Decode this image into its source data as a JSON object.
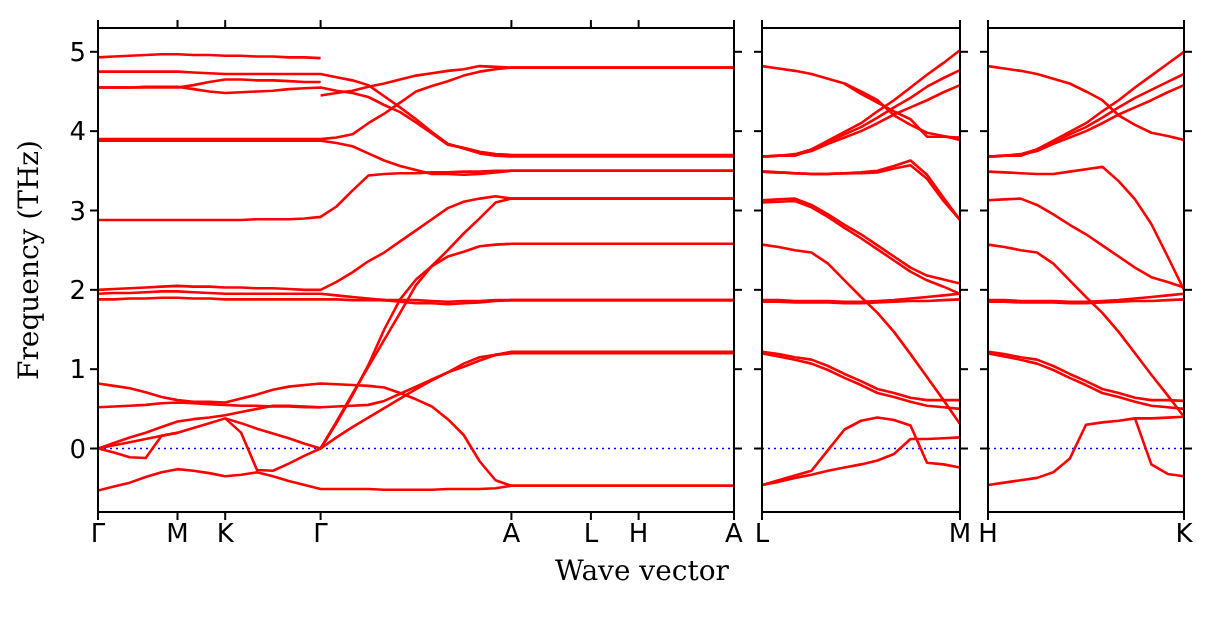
{
  "chart_data": [
    {
      "type": "line",
      "ylabel": "Frequency (THz)",
      "xlabel": "Wave vector",
      "categories": [
        "Γ",
        null,
        null,
        null,
        null,
        "M",
        null,
        null,
        "K",
        null,
        null,
        null,
        null,
        null,
        "Γ",
        null,
        null,
        null,
        null,
        null,
        null,
        null,
        null,
        null,
        null,
        null,
        "A",
        null,
        null,
        null,
        null,
        "L",
        null,
        null,
        "H",
        null,
        null,
        null,
        null,
        null,
        "A"
      ],
      "ylim": [
        -0.8,
        5.3
      ],
      "yticks": [
        0,
        1,
        2,
        3,
        4,
        5
      ],
      "ref_lines": [
        {
          "axis": "y",
          "value": 0,
          "color": "#0000ff",
          "line_style": "dotted"
        }
      ],
      "series": [
        {
          "color": "#ff0000",
          "values": [
            4.93,
            4.94,
            4.95,
            4.96,
            4.97,
            4.97,
            4.96,
            4.96,
            4.95,
            4.95,
            4.94,
            4.94,
            4.93,
            4.93,
            4.92,
            null,
            null,
            null,
            null,
            null,
            null,
            null,
            null,
            null,
            null,
            null,
            null,
            null,
            null,
            null,
            null,
            null,
            null,
            null,
            null,
            null,
            null,
            null,
            null,
            null,
            null
          ]
        },
        {
          "color": "#ff0000",
          "values": [
            4.75,
            4.75,
            4.75,
            4.75,
            4.75,
            4.75,
            4.74,
            4.73,
            4.72,
            4.72,
            4.72,
            4.72,
            4.72,
            4.72,
            4.72,
            4.68,
            4.64,
            4.58,
            4.44,
            4.3,
            4.15,
            3.99,
            3.84,
            3.78,
            3.72,
            3.69,
            3.68,
            3.68,
            3.68,
            3.68,
            3.68,
            3.68,
            3.68,
            3.68,
            3.68,
            3.68,
            3.68,
            3.68,
            3.68,
            3.68,
            3.68
          ]
        },
        {
          "color": "#ff0000",
          "values": [
            4.55,
            4.55,
            4.55,
            4.56,
            4.56,
            4.56,
            4.53,
            4.5,
            4.48,
            4.49,
            4.5,
            4.51,
            4.53,
            4.54,
            4.55,
            4.51,
            4.48,
            4.43,
            4.33,
            4.24,
            4.11,
            3.97,
            3.83,
            3.79,
            3.74,
            3.71,
            3.7,
            3.7,
            3.7,
            3.7,
            3.7,
            3.7,
            3.7,
            3.7,
            3.7,
            3.7,
            3.7,
            3.7,
            3.7,
            3.7,
            3.7
          ]
        },
        {
          "color": "#ff0000",
          "values": [
            4.55,
            4.55,
            4.55,
            4.55,
            4.55,
            4.55,
            4.58,
            4.62,
            4.65,
            4.65,
            4.64,
            4.64,
            4.63,
            4.62,
            4.62,
            null,
            null,
            null,
            null,
            null,
            null,
            null,
            null,
            null,
            null,
            null,
            null,
            null,
            null,
            null,
            null,
            null,
            null,
            null,
            null,
            null,
            null,
            null,
            null,
            null,
            null
          ]
        },
        {
          "color": "#ff0000",
          "values": [
            null,
            null,
            null,
            null,
            null,
            null,
            null,
            null,
            null,
            null,
            null,
            null,
            null,
            null,
            4.45,
            4.48,
            4.51,
            4.56,
            4.6,
            4.65,
            4.7,
            4.73,
            4.76,
            4.78,
            4.82,
            4.81,
            4.8,
            4.8,
            4.8,
            4.8,
            4.8,
            4.8,
            4.8,
            4.8,
            4.8,
            4.8,
            4.8,
            4.8,
            4.8,
            4.8,
            4.8
          ]
        },
        {
          "color": "#ff0000",
          "values": [
            3.9,
            3.9,
            3.9,
            3.9,
            3.9,
            3.9,
            3.9,
            3.9,
            3.9,
            3.9,
            3.9,
            3.9,
            3.9,
            3.9,
            3.9,
            3.92,
            3.96,
            4.1,
            4.22,
            4.36,
            4.5,
            4.57,
            4.63,
            4.7,
            4.75,
            4.78,
            4.8,
            4.8,
            4.8,
            4.8,
            4.8,
            4.8,
            4.8,
            4.8,
            4.8,
            4.8,
            4.8,
            4.8,
            4.8,
            4.8,
            4.8
          ]
        },
        {
          "color": "#ff0000",
          "values": [
            3.88,
            3.88,
            3.88,
            3.88,
            3.88,
            3.88,
            3.88,
            3.88,
            3.88,
            3.88,
            3.88,
            3.88,
            3.88,
            3.88,
            3.88,
            3.85,
            3.81,
            3.72,
            3.63,
            3.56,
            3.51,
            3.46,
            3.46,
            3.45,
            3.46,
            3.48,
            3.5,
            3.5,
            3.5,
            3.5,
            3.5,
            3.5,
            3.5,
            3.5,
            3.5,
            3.5,
            3.5,
            3.5,
            3.5,
            3.5,
            3.5
          ]
        },
        {
          "color": "#ff0000",
          "values": [
            2.88,
            2.88,
            2.88,
            2.88,
            2.88,
            2.88,
            2.88,
            2.88,
            2.88,
            2.88,
            2.89,
            2.89,
            2.89,
            2.9,
            2.92,
            3.05,
            3.25,
            3.44,
            3.46,
            3.47,
            3.47,
            3.48,
            3.48,
            3.49,
            3.49,
            3.5,
            3.5,
            3.5,
            3.5,
            3.5,
            3.5,
            3.5,
            3.5,
            3.5,
            3.5,
            3.5,
            3.5,
            3.5,
            3.5,
            3.5,
            3.5
          ]
        },
        {
          "color": "#ff0000",
          "values": [
            2.0,
            2.01,
            2.02,
            2.03,
            2.04,
            2.05,
            2.04,
            2.04,
            2.03,
            2.03,
            2.02,
            2.02,
            2.01,
            2.0,
            2.0,
            2.1,
            2.22,
            2.36,
            2.47,
            2.61,
            2.75,
            2.89,
            3.03,
            3.11,
            3.15,
            3.18,
            3.15,
            3.15,
            3.15,
            3.15,
            3.15,
            3.15,
            3.15,
            3.15,
            3.15,
            3.15,
            3.15,
            3.15,
            3.15,
            3.15,
            3.15
          ]
        },
        {
          "color": "#ff0000",
          "values": [
            1.95,
            1.96,
            1.96,
            1.97,
            1.98,
            1.98,
            1.97,
            1.96,
            1.95,
            1.95,
            1.95,
            1.95,
            1.95,
            1.95,
            1.95,
            1.93,
            1.91,
            1.89,
            1.87,
            1.85,
            1.83,
            1.83,
            1.82,
            1.83,
            1.84,
            1.86,
            1.87,
            1.87,
            1.87,
            1.87,
            1.87,
            1.87,
            1.87,
            1.87,
            1.87,
            1.87,
            1.87,
            1.87,
            1.87,
            1.87,
            1.87
          ]
        },
        {
          "color": "#ff0000",
          "values": [
            1.88,
            1.88,
            1.89,
            1.89,
            1.9,
            1.9,
            1.89,
            1.89,
            1.88,
            1.88,
            1.88,
            1.88,
            1.88,
            1.88,
            1.88,
            1.88,
            1.87,
            1.87,
            1.87,
            1.87,
            1.87,
            1.86,
            1.85,
            1.86,
            1.86,
            1.87,
            1.87,
            1.87,
            1.87,
            1.87,
            1.87,
            1.87,
            1.87,
            1.87,
            1.87,
            1.87,
            1.87,
            1.87,
            1.87,
            1.87,
            1.87
          ]
        },
        {
          "color": "#ff0000",
          "values": [
            null,
            null,
            null,
            null,
            null,
            null,
            null,
            null,
            null,
            null,
            null,
            null,
            null,
            null,
            0,
            0.32,
            0.67,
            1.05,
            1.5,
            1.88,
            2.13,
            2.3,
            2.42,
            2.48,
            2.55,
            2.57,
            2.58,
            2.58,
            2.58,
            2.58,
            2.58,
            2.58,
            2.58,
            2.58,
            2.58,
            2.58,
            2.58,
            2.58,
            2.58,
            2.58,
            2.58
          ]
        },
        {
          "color": "#ff0000",
          "values": [
            null,
            null,
            null,
            null,
            null,
            null,
            null,
            null,
            null,
            null,
            null,
            null,
            null,
            null,
            0,
            0.34,
            0.69,
            1.03,
            1.37,
            1.71,
            2.06,
            2.3,
            2.5,
            2.71,
            2.9,
            3.1,
            3.15,
            3.15,
            3.15,
            3.15,
            3.15,
            3.15,
            3.15,
            3.15,
            3.15,
            3.15,
            3.15,
            3.15,
            3.15,
            3.15,
            3.15
          ]
        },
        {
          "color": "#ff0000",
          "values": [
            0.82,
            0.79,
            0.76,
            0.71,
            0.65,
            0.61,
            0.59,
            0.59,
            0.58,
            0.63,
            0.68,
            0.74,
            0.78,
            0.8,
            0.82,
            0.81,
            0.8,
            0.79,
            0.77,
            0.7,
            0.62,
            0.53,
            0.37,
            0.17,
            -0.16,
            -0.4,
            -0.47,
            -0.47,
            -0.47,
            -0.47,
            -0.47,
            -0.47,
            -0.47,
            -0.47,
            -0.47,
            -0.47,
            -0.47,
            -0.47,
            -0.47,
            -0.47,
            -0.47
          ]
        },
        {
          "color": "#ff0000",
          "values": [
            0.52,
            0.53,
            0.54,
            0.55,
            0.57,
            0.58,
            0.57,
            0.56,
            0.55,
            0.54,
            0.54,
            0.53,
            0.53,
            0.52,
            0.52,
            0.53,
            0.54,
            0.55,
            0.6,
            0.69,
            0.78,
            0.87,
            0.96,
            1.03,
            1.11,
            1.18,
            1.22,
            1.22,
            1.22,
            1.22,
            1.22,
            1.22,
            1.22,
            1.22,
            1.22,
            1.22,
            1.22,
            1.22,
            1.22,
            1.22,
            1.22
          ]
        },
        {
          "color": "#ff0000",
          "values": [
            0,
            0.04,
            0.08,
            0.12,
            0.16,
            0.2,
            0.26,
            0.32,
            0.38,
            0.32,
            0.25,
            0.19,
            0.13,
            0.06,
            0,
            0.14,
            0.27,
            0.39,
            0.51,
            0.63,
            0.75,
            0.86,
            0.96,
            1.07,
            1.15,
            1.18,
            1.2,
            1.2,
            1.2,
            1.2,
            1.2,
            1.2,
            1.2,
            1.2,
            1.2,
            1.2,
            1.2,
            1.2,
            1.2,
            1.2,
            1.2
          ]
        },
        {
          "color": "#ff0000",
          "values": [
            0,
            0.07,
            0.14,
            0.2,
            0.27,
            0.34,
            0.37,
            0.39,
            0.42,
            0.46,
            0.5,
            0.54,
            0.54,
            0.53,
            0.52,
            null,
            null,
            null,
            null,
            null,
            null,
            null,
            null,
            null,
            null,
            null,
            null,
            null,
            null,
            null,
            null,
            null,
            null,
            null,
            null,
            null,
            null,
            null,
            null,
            null,
            null
          ]
        },
        {
          "color": "#ff0000",
          "values": [
            -0.53,
            -0.48,
            -0.43,
            -0.36,
            -0.3,
            -0.26,
            -0.28,
            -0.31,
            -0.35,
            -0.33,
            -0.3,
            -0.35,
            -0.41,
            -0.46,
            -0.51,
            -0.51,
            -0.51,
            -0.51,
            -0.52,
            -0.52,
            -0.52,
            -0.52,
            -0.51,
            -0.51,
            -0.51,
            -0.5,
            -0.47,
            -0.47,
            -0.47,
            -0.47,
            -0.47,
            -0.47,
            -0.47,
            -0.47,
            -0.47,
            -0.47,
            -0.47,
            -0.47,
            -0.47,
            -0.47,
            -0.47
          ]
        },
        {
          "color": "#ff0000",
          "values": [
            0,
            -0.05,
            -0.11,
            -0.12,
            0.16,
            0.2,
            null,
            null,
            null,
            null,
            null,
            null,
            null,
            null,
            null,
            null,
            null,
            null,
            null,
            null,
            null,
            null,
            null,
            null,
            null,
            null,
            null,
            null,
            null,
            null,
            null,
            null,
            null,
            null,
            null,
            null,
            null,
            null,
            null,
            null,
            null
          ]
        },
        {
          "color": "#ff0000",
          "values": [
            null,
            null,
            null,
            null,
            null,
            null,
            null,
            null,
            0.38,
            0.2,
            -0.27,
            -0.28,
            -0.19,
            -0.09,
            0,
            null,
            null,
            null,
            null,
            null,
            null,
            null,
            null,
            null,
            null,
            null,
            null,
            null,
            null,
            null,
            null,
            null,
            null,
            null,
            null,
            null,
            null,
            null,
            null,
            null,
            null
          ]
        }
      ]
    },
    {
      "type": "line",
      "tick_labels": "x",
      "categories": [
        "L",
        null,
        null,
        null,
        null,
        null,
        null,
        null,
        null,
        null,
        null,
        null,
        "M"
      ],
      "ylim": [
        -0.8,
        5.3
      ],
      "yticks": [
        0,
        1,
        2,
        3,
        4,
        5
      ],
      "ref_lines": [
        {
          "axis": "y",
          "value": 0,
          "color": "#0000ff",
          "line_style": "dotted"
        }
      ],
      "series": [
        {
          "color": "#ff0000",
          "values": [
            4.82,
            4.79,
            4.76,
            4.72,
            4.66,
            4.6,
            4.5,
            4.39,
            4.2,
            4.08,
            3.98,
            3.94,
            3.89
          ]
        },
        {
          "color": "#ff0000",
          "values": [
            null,
            null,
            null,
            null,
            null,
            4.6,
            4.47,
            4.36,
            4.25,
            4.15,
            3.93,
            3.93,
            3.92
          ]
        },
        {
          "color": "#ff0000",
          "values": [
            3.68,
            3.69,
            3.69,
            3.77,
            3.88,
            3.99,
            4.1,
            4.25,
            4.39,
            4.55,
            4.71,
            4.86,
            5.02
          ]
        },
        {
          "color": "#ff0000",
          "values": [
            3.68,
            3.69,
            3.71,
            3.77,
            3.86,
            3.96,
            4.05,
            4.17,
            4.3,
            4.42,
            4.56,
            4.67,
            4.77
          ]
        },
        {
          "color": "#ff0000",
          "values": [
            3.68,
            3.69,
            3.7,
            3.75,
            3.84,
            3.92,
            4.0,
            4.1,
            4.21,
            4.3,
            4.39,
            4.49,
            4.58
          ]
        },
        {
          "color": "#ff0000",
          "values": [
            3.49,
            3.48,
            3.47,
            3.46,
            3.46,
            3.47,
            3.48,
            3.5,
            3.56,
            3.63,
            3.45,
            3.16,
            2.88
          ]
        },
        {
          "color": "#ff0000",
          "values": [
            3.49,
            3.48,
            3.47,
            3.46,
            3.46,
            3.47,
            3.47,
            3.48,
            3.53,
            3.57,
            3.4,
            3.12,
            2.88
          ]
        },
        {
          "color": "#ff0000",
          "values": [
            3.13,
            3.14,
            3.15,
            3.07,
            2.95,
            2.82,
            2.7,
            2.56,
            2.42,
            2.28,
            2.18,
            2.13,
            2.08
          ]
        },
        {
          "color": "#ff0000",
          "values": [
            3.1,
            3.11,
            3.12,
            3.04,
            2.92,
            2.78,
            2.65,
            2.51,
            2.37,
            2.23,
            2.12,
            2.04,
            1.95
          ]
        },
        {
          "color": "#ff0000",
          "values": [
            2.57,
            2.54,
            2.5,
            2.47,
            2.33,
            2.12,
            1.91,
            1.71,
            1.47,
            1.19,
            0.9,
            0.61,
            0.31
          ]
        },
        {
          "color": "#ff0000",
          "values": [
            1.87,
            1.87,
            1.86,
            1.86,
            1.86,
            1.85,
            1.85,
            1.86,
            1.87,
            1.89,
            1.91,
            1.93,
            1.95
          ]
        },
        {
          "color": "#ff0000",
          "values": [
            1.85,
            1.85,
            1.84,
            1.84,
            1.84,
            1.83,
            1.83,
            1.84,
            1.85,
            1.86,
            1.86,
            1.87,
            1.88
          ]
        },
        {
          "color": "#ff0000",
          "values": [
            1.22,
            1.19,
            1.15,
            1.12,
            1.04,
            0.94,
            0.85,
            0.75,
            0.7,
            0.64,
            0.61,
            0.61,
            0.61
          ]
        },
        {
          "color": "#ff0000",
          "values": [
            1.2,
            1.16,
            1.12,
            1.07,
            0.99,
            0.89,
            0.8,
            0.7,
            0.65,
            0.59,
            0.54,
            0.52,
            0.5
          ]
        },
        {
          "color": "#ff0000",
          "values": [
            -0.46,
            -0.4,
            -0.34,
            -0.28,
            -0.02,
            0.24,
            0.35,
            0.39,
            0.36,
            0.29,
            -0.18,
            -0.2,
            -0.24
          ]
        },
        {
          "color": "#ff0000",
          "values": [
            -0.46,
            -0.42,
            -0.37,
            -0.33,
            -0.28,
            -0.24,
            -0.2,
            -0.15,
            -0.07,
            0.12,
            0.12,
            0.13,
            0.14
          ]
        }
      ]
    },
    {
      "type": "line",
      "tick_labels": "x",
      "categories": [
        "H",
        null,
        null,
        null,
        null,
        null,
        null,
        null,
        null,
        null,
        null,
        null,
        "K"
      ],
      "ylim": [
        -0.8,
        5.3
      ],
      "yticks": [
        0,
        1,
        2,
        3,
        4,
        5
      ],
      "ref_lines": [
        {
          "axis": "y",
          "value": 0,
          "color": "#0000ff",
          "line_style": "dotted"
        }
      ],
      "series": [
        {
          "color": "#ff0000",
          "values": [
            4.82,
            4.79,
            4.76,
            4.72,
            4.66,
            4.6,
            4.5,
            4.39,
            4.2,
            4.08,
            3.98,
            3.94,
            3.89
          ]
        },
        {
          "color": "#ff0000",
          "values": [
            3.68,
            3.69,
            3.69,
            3.77,
            3.88,
            3.99,
            4.1,
            4.25,
            4.39,
            4.55,
            4.7,
            4.85,
            5.0
          ]
        },
        {
          "color": "#ff0000",
          "values": [
            3.68,
            3.69,
            3.71,
            3.77,
            3.86,
            3.96,
            4.05,
            4.17,
            4.3,
            4.42,
            4.52,
            4.62,
            4.72
          ]
        },
        {
          "color": "#ff0000",
          "values": [
            3.68,
            3.69,
            3.7,
            3.75,
            3.84,
            3.92,
            4.0,
            4.1,
            4.21,
            4.3,
            4.39,
            4.49,
            4.58
          ]
        },
        {
          "color": "#ff0000",
          "values": [
            3.49,
            3.48,
            3.47,
            3.46,
            3.46,
            3.49,
            3.52,
            3.55,
            3.37,
            3.14,
            2.83,
            2.42,
            2.0
          ]
        },
        {
          "color": "#ff0000",
          "values": [
            3.13,
            3.14,
            3.15,
            3.07,
            2.95,
            2.82,
            2.7,
            2.56,
            2.42,
            2.28,
            2.16,
            2.1,
            2.03
          ]
        },
        {
          "color": "#ff0000",
          "values": [
            2.57,
            2.54,
            2.5,
            2.47,
            2.33,
            2.12,
            1.91,
            1.71,
            1.47,
            1.2,
            0.93,
            0.67,
            0.4
          ]
        },
        {
          "color": "#ff0000",
          "values": [
            1.87,
            1.87,
            1.86,
            1.86,
            1.86,
            1.85,
            1.85,
            1.86,
            1.87,
            1.89,
            1.91,
            1.93,
            1.95
          ]
        },
        {
          "color": "#ff0000",
          "values": [
            1.85,
            1.85,
            1.84,
            1.84,
            1.84,
            1.83,
            1.83,
            1.84,
            1.85,
            1.86,
            1.86,
            1.87,
            1.88
          ]
        },
        {
          "color": "#ff0000",
          "values": [
            1.22,
            1.19,
            1.15,
            1.12,
            1.04,
            0.94,
            0.85,
            0.75,
            0.7,
            0.64,
            0.61,
            0.61,
            0.6
          ]
        },
        {
          "color": "#ff0000",
          "values": [
            1.2,
            1.16,
            1.12,
            1.07,
            0.99,
            0.89,
            0.8,
            0.7,
            0.65,
            0.59,
            0.54,
            0.52,
            0.5
          ]
        },
        {
          "color": "#ff0000",
          "values": [
            -0.46,
            -0.43,
            -0.4,
            -0.37,
            -0.3,
            -0.13,
            0.3,
            0.33,
            0.35,
            0.38,
            0.38,
            0.39,
            0.4
          ]
        },
        {
          "color": "#ff0000",
          "values": [
            null,
            null,
            null,
            null,
            null,
            null,
            null,
            null,
            null,
            0.38,
            -0.2,
            -0.32,
            -0.35
          ]
        }
      ]
    }
  ]
}
